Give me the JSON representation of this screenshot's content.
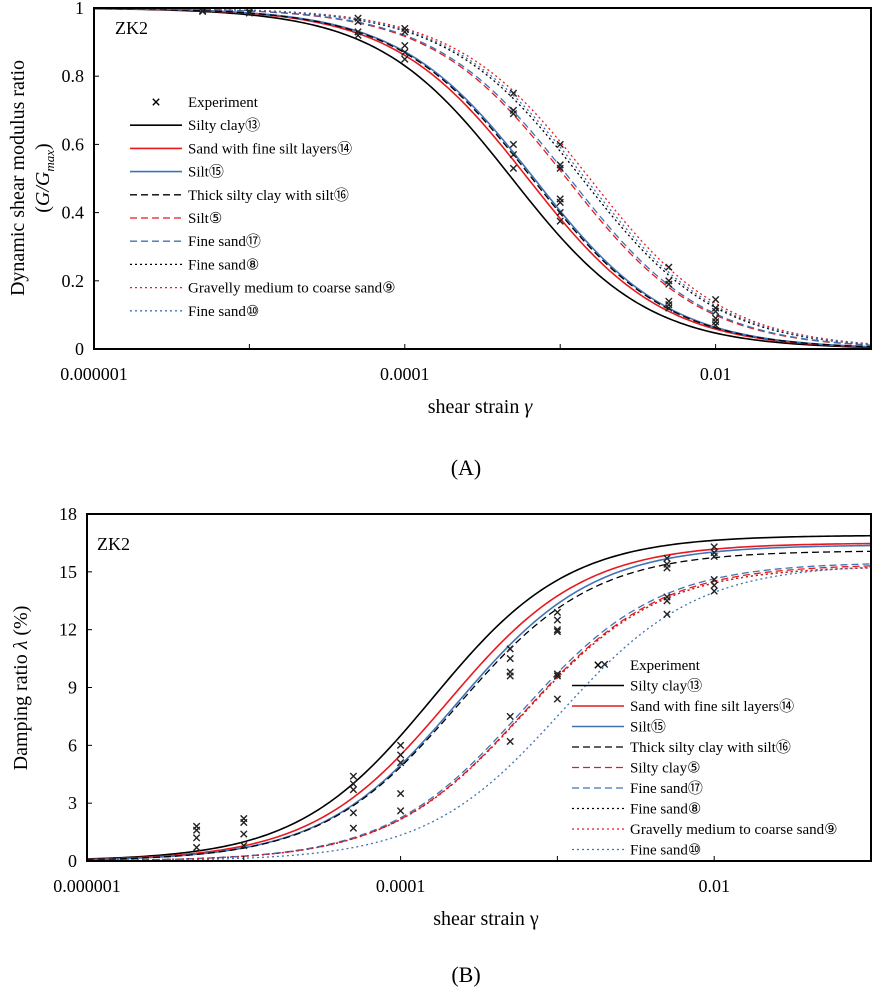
{
  "chart_data": [
    {
      "id": "A",
      "type": "line",
      "panel_label": "(A)",
      "box_label": "ZK2",
      "xscale": "log",
      "xlim": [
        1e-06,
        0.1
      ],
      "ylim": [
        0,
        1
      ],
      "ylabel_line1": "Dynamic shear modulus ratio",
      "ylabel_line2": "(G/Gmax)",
      "ylabel_italic_main": "G/G",
      "ylabel_sub": "max",
      "xlabel_text": "shear strain ",
      "xlabel_symbol": "γ",
      "x_ticks": [
        {
          "value": 1e-06,
          "label": "0.000001"
        },
        {
          "value": 0.0001,
          "label": "0.0001"
        },
        {
          "value": 0.01,
          "label": "0.01"
        }
      ],
      "y_ticks": [
        {
          "value": 0,
          "label": "0"
        },
        {
          "value": 0.2,
          "label": "0.2"
        },
        {
          "value": 0.4,
          "label": "0.4"
        },
        {
          "value": 0.6,
          "label": "0.6"
        },
        {
          "value": 0.8,
          "label": "0.8"
        },
        {
          "value": 1,
          "label": "1"
        }
      ],
      "legend_position": "center-left",
      "experiment_label": "Experiment",
      "series": [
        {
          "name": "Silty clay⑬",
          "color": "#000000",
          "dash": "solid",
          "ref": 0.00049
        },
        {
          "name": "Sand with fine silt layers⑭",
          "color": "#e8191e",
          "dash": "solid",
          "ref": 0.00062
        },
        {
          "name": "Silt⑮",
          "color": "#3f73b5",
          "dash": "solid",
          "ref": 0.00068
        },
        {
          "name": "Thick silty clay with silt⑯",
          "color": "#000000",
          "dash": "dashed",
          "ref": 0.00066
        },
        {
          "name": "Silt⑤",
          "color": "#e8191e",
          "dash": "dashed",
          "ref": 0.0011
        },
        {
          "name": "Fine sand⑰",
          "color": "#3f73b5",
          "dash": "dashed",
          "ref": 0.00115
        },
        {
          "name": "Fine sand⑧",
          "color": "#000000",
          "dash": "dotted",
          "ref": 0.00138
        },
        {
          "name": "Gravelly medium to coarse sand⑨",
          "color": "#e8191e",
          "dash": "dotted",
          "ref": 0.00155
        },
        {
          "name": "Fine sand⑩",
          "color": "#3f73b5",
          "dash": "dotted",
          "ref": 0.00145
        }
      ],
      "experiment": [
        [
          5e-06,
          0.993
        ],
        [
          5e-06,
          0.99
        ],
        [
          1e-05,
          0.99
        ],
        [
          1e-05,
          0.985
        ],
        [
          5e-05,
          0.97
        ],
        [
          5e-05,
          0.96
        ],
        [
          5e-05,
          0.93
        ],
        [
          5e-05,
          0.92
        ],
        [
          0.0001,
          0.94
        ],
        [
          0.0001,
          0.93
        ],
        [
          0.0001,
          0.89
        ],
        [
          0.0001,
          0.87
        ],
        [
          0.0001,
          0.85
        ],
        [
          0.0005,
          0.75
        ],
        [
          0.0005,
          0.7
        ],
        [
          0.0005,
          0.69
        ],
        [
          0.0005,
          0.6
        ],
        [
          0.0005,
          0.57
        ],
        [
          0.0005,
          0.53
        ],
        [
          0.001,
          0.6
        ],
        [
          0.001,
          0.54
        ],
        [
          0.001,
          0.53
        ],
        [
          0.001,
          0.44
        ],
        [
          0.001,
          0.43
        ],
        [
          0.001,
          0.4
        ],
        [
          0.001,
          0.375
        ],
        [
          0.005,
          0.24
        ],
        [
          0.005,
          0.2
        ],
        [
          0.005,
          0.19
        ],
        [
          0.005,
          0.14
        ],
        [
          0.005,
          0.13
        ],
        [
          0.005,
          0.12
        ],
        [
          0.01,
          0.145
        ],
        [
          0.01,
          0.12
        ],
        [
          0.01,
          0.11
        ],
        [
          0.01,
          0.09
        ],
        [
          0.01,
          0.08
        ],
        [
          0.01,
          0.07
        ]
      ]
    },
    {
      "id": "B",
      "type": "line",
      "panel_label": "(B)",
      "box_label": "ZK2",
      "xscale": "log",
      "xlim": [
        1e-06,
        0.1
      ],
      "ylim": [
        0,
        18
      ],
      "ylabel_text": "Damping ratio ",
      "ylabel_symbol": "λ",
      "ylabel_unit": " (%)",
      "xlabel_text": "shear strain γ",
      "x_ticks": [
        {
          "value": 1e-06,
          "label": "0.000001"
        },
        {
          "value": 0.0001,
          "label": "0.0001"
        },
        {
          "value": 0.01,
          "label": "0.01"
        }
      ],
      "y_ticks": [
        {
          "value": 0,
          "label": "0"
        },
        {
          "value": 3,
          "label": "3"
        },
        {
          "value": 6,
          "label": "6"
        },
        {
          "value": 9,
          "label": "9"
        },
        {
          "value": 12,
          "label": "12"
        },
        {
          "value": 15,
          "label": "15"
        },
        {
          "value": 18,
          "label": "18"
        }
      ],
      "legend_position": "center-right",
      "experiment_label": "Experiment",
      "series": [
        {
          "name": "Silty clay⑬",
          "color": "#000000",
          "dash": "solid",
          "max": 16.9,
          "ref": 0.00016
        },
        {
          "name": "Sand with fine silt layers⑭",
          "color": "#e8191e",
          "dash": "solid",
          "max": 16.5,
          "ref": 0.0002
        },
        {
          "name": "Silt⑮",
          "color": "#3f73b5",
          "dash": "solid",
          "max": 16.4,
          "ref": 0.00023
        },
        {
          "name": "Thick silty clay with silt⑯",
          "color": "#000000",
          "dash": "dashed",
          "max": 16.1,
          "ref": 0.00023
        },
        {
          "name": "Silty clay⑤",
          "color": "#e8191e",
          "dash": "dashed",
          "max": 15.4,
          "ref": 0.00061
        },
        {
          "name": "Fine sand⑰",
          "color": "#3f73b5",
          "dash": "dashed",
          "max": 15.5,
          "ref": 0.00059
        },
        {
          "name": "Fine sand⑧",
          "color": "#000000",
          "dash": "dotted",
          "max": 15.3,
          "ref": 0.00061
        },
        {
          "name": "Gravelly medium to coarse sand⑨",
          "color": "#e8191e",
          "dash": "dotted",
          "max": 15.3,
          "ref": 0.00061
        },
        {
          "name": "Fine sand⑩",
          "color": "#3f73b5",
          "dash": "dotted",
          "max": 15.4,
          "ref": 0.00105
        }
      ],
      "experiment": [
        [
          5e-06,
          1.8
        ],
        [
          5e-06,
          1.6
        ],
        [
          5e-06,
          1.2
        ],
        [
          5e-06,
          0.7
        ],
        [
          1e-05,
          2.2
        ],
        [
          1e-05,
          2.0
        ],
        [
          1e-05,
          1.4
        ],
        [
          1e-05,
          0.8
        ],
        [
          5e-05,
          4.4
        ],
        [
          5e-05,
          4.0
        ],
        [
          5e-05,
          3.7
        ],
        [
          5e-05,
          2.5
        ],
        [
          5e-05,
          1.7
        ],
        [
          0.0001,
          6.0
        ],
        [
          0.0001,
          5.5
        ],
        [
          0.0001,
          5.1
        ],
        [
          0.0001,
          3.5
        ],
        [
          0.0001,
          2.6
        ],
        [
          0.0005,
          11.0
        ],
        [
          0.0005,
          10.5
        ],
        [
          0.0005,
          9.8
        ],
        [
          0.0005,
          9.6
        ],
        [
          0.0005,
          7.5
        ],
        [
          0.0005,
          6.2
        ],
        [
          0.001,
          12.9
        ],
        [
          0.001,
          12.5
        ],
        [
          0.001,
          12.0
        ],
        [
          0.001,
          11.9
        ],
        [
          0.001,
          9.7
        ],
        [
          0.001,
          9.6
        ],
        [
          0.001,
          8.4
        ],
        [
          0.002,
          10.2
        ],
        [
          0.005,
          15.7
        ],
        [
          0.005,
          15.4
        ],
        [
          0.005,
          15.2
        ],
        [
          0.005,
          13.7
        ],
        [
          0.005,
          13.5
        ],
        [
          0.005,
          12.8
        ],
        [
          0.01,
          16.3
        ],
        [
          0.01,
          16.0
        ],
        [
          0.01,
          15.8
        ],
        [
          0.01,
          14.6
        ],
        [
          0.01,
          14.3
        ],
        [
          0.01,
          14.0
        ]
      ]
    }
  ]
}
